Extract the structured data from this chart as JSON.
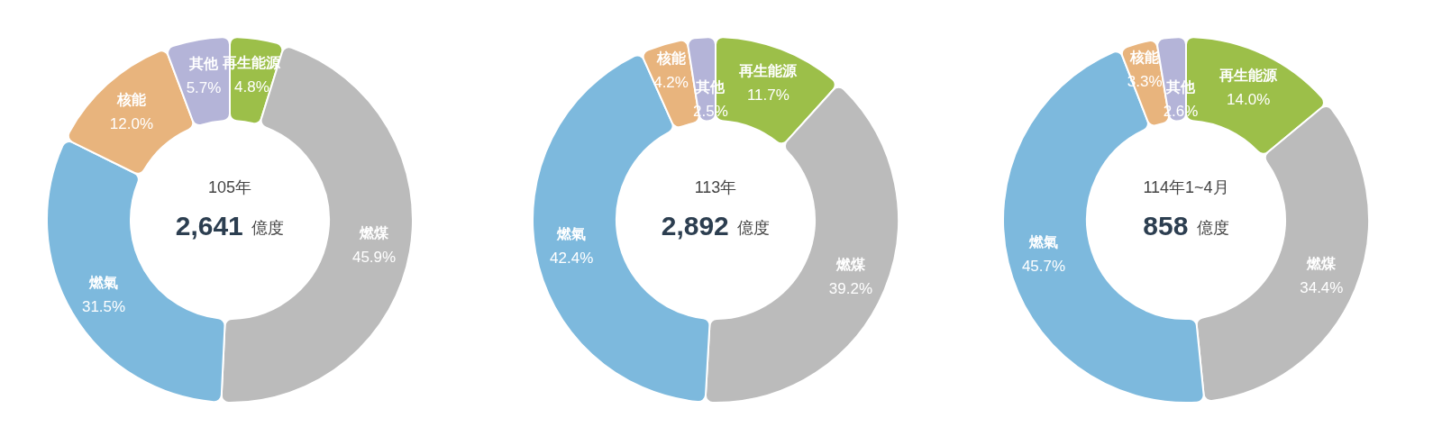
{
  "chart_data": [
    {
      "type": "donut",
      "title": "105年",
      "annotations": [
        "2,641",
        "億度"
      ],
      "categories": [
        "再生能源",
        "燃煤",
        "燃氣",
        "核能",
        "其他"
      ],
      "values": [
        4.8,
        45.9,
        31.5,
        12.0,
        5.7
      ],
      "value_labels": [
        "4.8%",
        "45.9%",
        "31.5%",
        "12.0%",
        "5.7%"
      ],
      "colors": [
        "#9cbf49",
        "#bbbbbb",
        "#7db9dd",
        "#e8b47d",
        "#b4b4d8"
      ]
    },
    {
      "type": "donut",
      "title": "113年",
      "annotations": [
        "2,892",
        "億度"
      ],
      "categories": [
        "再生能源",
        "燃煤",
        "燃氣",
        "核能",
        "其他"
      ],
      "values": [
        11.7,
        39.2,
        42.4,
        4.2,
        2.5
      ],
      "value_labels": [
        "11.7%",
        "39.2%",
        "42.4%",
        "4.2%",
        "2.5%"
      ],
      "colors": [
        "#9cbf49",
        "#bbbbbb",
        "#7db9dd",
        "#e8b47d",
        "#b4b4d8"
      ]
    },
    {
      "type": "donut",
      "title": "114年1~4月",
      "annotations": [
        "858",
        "億度"
      ],
      "categories": [
        "再生能源",
        "燃煤",
        "燃氣",
        "核能",
        "其他"
      ],
      "values": [
        14.0,
        34.4,
        45.7,
        3.3,
        2.6
      ],
      "value_labels": [
        "14.0%",
        "34.4%",
        "45.7%",
        "3.3%",
        "2.6%"
      ],
      "colors": [
        "#9cbf49",
        "#bbbbbb",
        "#7db9dd",
        "#e8b47d",
        "#b4b4d8"
      ]
    }
  ]
}
